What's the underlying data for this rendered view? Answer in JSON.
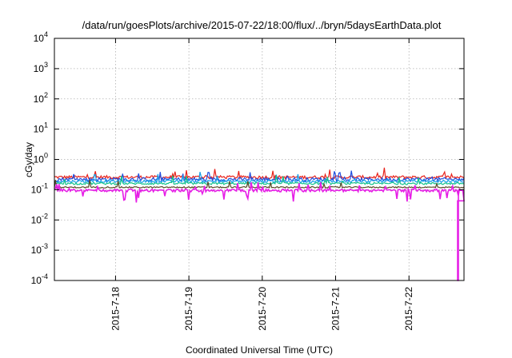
{
  "chart_data": {
    "type": "line",
    "title": "/data/run/goesPlots/archive/2015-07-22/18:00/flux/../bryn/5daysEarthData.plot",
    "xlabel": "Coordinated Universal Time (UTC)",
    "ylabel": "cGy/day",
    "yscale": "log",
    "ylim": [
      0.0001,
      10000
    ],
    "yticks": [
      {
        "base": "10",
        "exp": "4",
        "value": 10000
      },
      {
        "base": "10",
        "exp": "3",
        "value": 1000
      },
      {
        "base": "10",
        "exp": "2",
        "value": 100
      },
      {
        "base": "10",
        "exp": "1",
        "value": 10
      },
      {
        "base": "10",
        "exp": "0",
        "value": 1
      },
      {
        "base": "10",
        "exp": "-1",
        "value": 0.1
      },
      {
        "base": "10",
        "exp": "-2",
        "value": 0.01
      },
      {
        "base": "10",
        "exp": "-3",
        "value": 0.001
      },
      {
        "base": "10",
        "exp": "-4",
        "value": 0.0001
      }
    ],
    "xlim": [
      "2015-07-17 04:00",
      "2015-07-22 18:00"
    ],
    "xticks": [
      "2015-7-18",
      "2015-7-19",
      "2015-7-20",
      "2015-7-21",
      "2015-7-22"
    ],
    "grid": true,
    "series": [
      {
        "color": "#e8231c",
        "level": 0.26,
        "spread": 0.12
      },
      {
        "color": "#1f4fe0",
        "level": 0.22,
        "spread": 0.14
      },
      {
        "color": "#18a0e8",
        "level": 0.19,
        "spread": 0.1
      },
      {
        "color": "#13c48a",
        "level": 0.16,
        "spread": 0.08
      },
      {
        "color": "#5a4a2a",
        "level": 0.12,
        "spread": 0.05
      },
      {
        "color": "#e61ee6",
        "level": 0.095,
        "spread": 0.1,
        "final_drop": 0.0001
      }
    ]
  }
}
